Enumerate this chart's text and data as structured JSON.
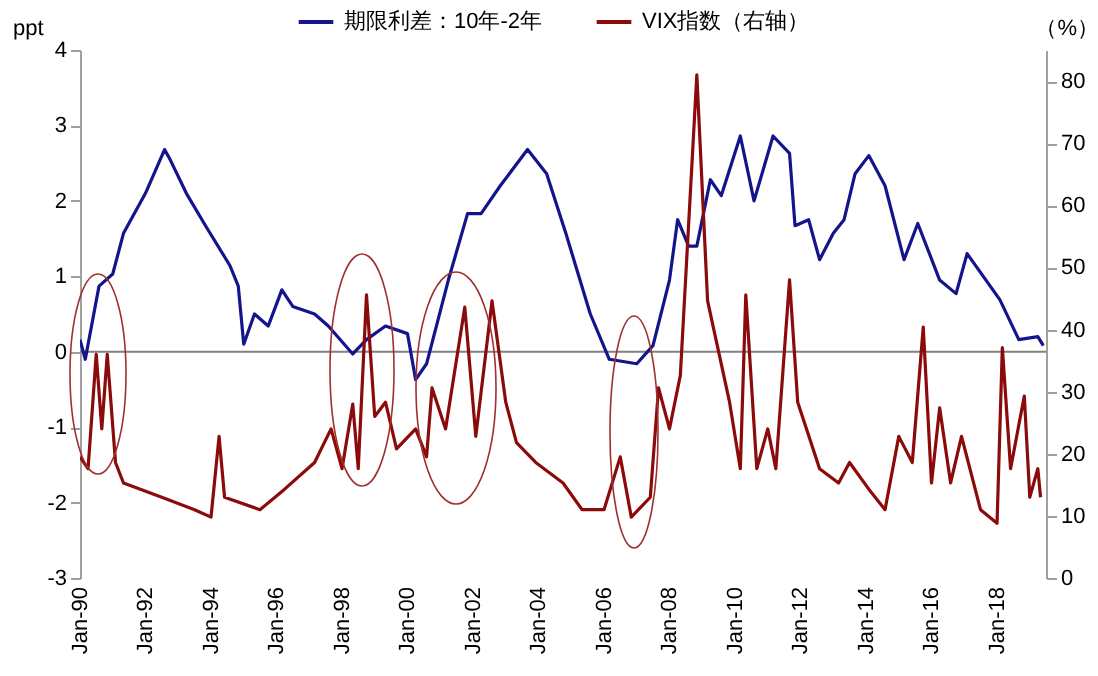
{
  "chart_data": {
    "type": "line",
    "ylabel": "ppt",
    "y2label": "（%）",
    "xlim": [
      "1990-01",
      "2019-07"
    ],
    "xticks": [
      {
        "value": "1990-01",
        "label": "Jan-90"
      },
      {
        "value": "1992-01",
        "label": "Jan-92"
      },
      {
        "value": "1994-01",
        "label": "Jan-94"
      },
      {
        "value": "1996-01",
        "label": "Jan-96"
      },
      {
        "value": "1998-01",
        "label": "Jan-98"
      },
      {
        "value": "2000-01",
        "label": "Jan-00"
      },
      {
        "value": "2002-01",
        "label": "Jan-02"
      },
      {
        "value": "2004-01",
        "label": "Jan-04"
      },
      {
        "value": "2006-01",
        "label": "Jan-06"
      },
      {
        "value": "2008-01",
        "label": "Jan-08"
      },
      {
        "value": "2010-01",
        "label": "Jan-10"
      },
      {
        "value": "2012-01",
        "label": "Jan-12"
      },
      {
        "value": "2014-01",
        "label": "Jan-14"
      },
      {
        "value": "2016-01",
        "label": "Jan-16"
      },
      {
        "value": "2018-01",
        "label": "Jan-18"
      }
    ],
    "ylim": [
      -3,
      4
    ],
    "yticks": [
      -3,
      -2,
      -1,
      0,
      1,
      2,
      3,
      4
    ],
    "y2lim": [
      0,
      85
    ],
    "y2ticks": [
      0,
      10,
      20,
      30,
      40,
      50,
      60,
      70,
      80
    ],
    "legend": "top",
    "ref_lines": [
      {
        "axis": "y",
        "value": 0,
        "color": "#808080"
      }
    ],
    "series": [
      {
        "name": "期限利差：10年-2年",
        "color": "#14148c",
        "x": [
          "1990-01",
          "1990-03",
          "1990-08",
          "1991-01",
          "1991-05",
          "1992-01",
          "1992-08",
          "1992-10",
          "1993-04",
          "1993-11",
          "1994-08",
          "1994-11",
          "1995-01",
          "1995-05",
          "1995-10",
          "1996-03",
          "1996-07",
          "1997-03",
          "1997-08",
          "1998-05",
          "1998-10",
          "1999-05",
          "2000-01",
          "2000-04",
          "2000-08",
          "2001-04",
          "2001-11",
          "2002-04",
          "2002-11",
          "2003-09",
          "2004-04",
          "2004-11",
          "2005-08",
          "2006-03",
          "2007-01",
          "2007-07",
          "2008-01",
          "2008-04",
          "2008-08",
          "2008-11",
          "2009-04",
          "2009-08",
          "2010-03",
          "2010-08",
          "2011-03",
          "2011-09",
          "2011-11",
          "2012-04",
          "2012-08",
          "2013-01",
          "2013-05",
          "2013-09",
          "2014-02",
          "2014-08",
          "2015-03",
          "2015-08",
          "2016-04",
          "2016-10",
          "2017-02",
          "2018-02",
          "2018-09",
          "2019-04",
          "2019-06"
        ],
        "values": [
          0.16,
          -0.1,
          0.87,
          1.03,
          1.57,
          2.1,
          2.68,
          2.55,
          2.1,
          1.67,
          1.14,
          0.87,
          0.1,
          0.5,
          0.34,
          0.82,
          0.6,
          0.5,
          0.34,
          -0.03,
          0.16,
          0.34,
          0.24,
          -0.37,
          -0.16,
          0.95,
          1.83,
          1.83,
          2.2,
          2.68,
          2.36,
          1.57,
          0.5,
          -0.1,
          -0.16,
          0.08,
          0.95,
          1.75,
          1.4,
          1.4,
          2.28,
          2.07,
          2.86,
          2.0,
          2.86,
          2.63,
          1.67,
          1.75,
          1.22,
          1.57,
          1.75,
          2.36,
          2.6,
          2.2,
          1.22,
          1.7,
          0.95,
          0.77,
          1.3,
          0.69,
          0.16,
          0.2,
          0.08
        ]
      },
      {
        "name": "VIX指数（右轴）",
        "color": "#8b0a0a",
        "axis": "y2",
        "x": [
          "1990-01",
          "1990-04",
          "1990-07",
          "1990-09",
          "1990-11",
          "1991-02",
          "1991-05",
          "1992-07",
          "1993-07",
          "1994-01",
          "1994-04",
          "1994-06",
          "1995-07",
          "1996-04",
          "1997-03",
          "1997-09",
          "1998-01",
          "1998-05",
          "1998-07",
          "1998-10",
          "1999-01",
          "1999-05",
          "1999-09",
          "2000-04",
          "2000-08",
          "2000-10",
          "2001-03",
          "2001-10",
          "2002-02",
          "2002-08",
          "2003-01",
          "2003-05",
          "2003-12",
          "2004-10",
          "2005-05",
          "2006-01",
          "2006-07",
          "2006-11",
          "2007-06",
          "2007-09",
          "2008-01",
          "2008-05",
          "2008-11",
          "2009-03",
          "2009-11",
          "2010-03",
          "2010-05",
          "2010-09",
          "2011-01",
          "2011-04",
          "2011-09",
          "2011-12",
          "2012-08",
          "2013-03",
          "2013-07",
          "2014-02",
          "2014-08",
          "2015-01",
          "2015-06",
          "2015-10",
          "2016-01",
          "2016-04",
          "2016-08",
          "2016-12",
          "2017-07",
          "2018-01",
          "2018-03",
          "2018-06",
          "2018-11",
          "2019-01",
          "2019-04",
          "2019-05"
        ],
        "values": [
          19.5,
          17.6,
          36,
          24,
          36,
          18.6,
          15.3,
          13,
          11,
          9.8,
          22.8,
          13,
          11,
          14.3,
          18.6,
          24,
          17.6,
          28,
          17.6,
          45.6,
          26,
          28.3,
          20.8,
          24,
          19.5,
          30.6,
          24,
          43.6,
          22.8,
          44.6,
          28.3,
          21.8,
          18.6,
          15.3,
          11,
          11,
          19.5,
          9.8,
          13,
          30.6,
          24,
          32.6,
          81,
          44.6,
          28.3,
          17.6,
          45.6,
          17.6,
          24,
          17.6,
          48,
          28.3,
          17.6,
          15.3,
          18.6,
          14.3,
          11,
          22.8,
          18.6,
          40.4,
          15.3,
          27.4,
          15.3,
          22.8,
          11,
          8.8,
          37.1,
          17.6,
          29.3,
          13,
          17.6,
          13
        ]
      }
    ]
  }
}
